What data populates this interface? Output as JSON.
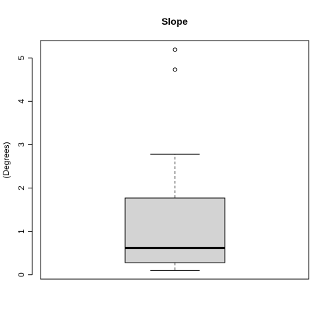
{
  "chart_data": {
    "type": "boxplot",
    "title": "Slope",
    "ylabel": "(Degrees)",
    "xlabel": "",
    "ylim": [
      -0.1,
      5.4
    ],
    "yticks": [
      0,
      1,
      2,
      3,
      4,
      5
    ],
    "ytick_labels": [
      "0",
      "1",
      "2",
      "3",
      "4",
      "5"
    ],
    "box": {
      "whisker_low": 0.1,
      "q1": 0.28,
      "median": 0.62,
      "q3": 1.77,
      "whisker_high": 2.78,
      "outliers": [
        4.73,
        5.19
      ]
    },
    "colors": {
      "box_fill": "#d3d3d3",
      "stroke": "#000000"
    },
    "grid": false
  }
}
